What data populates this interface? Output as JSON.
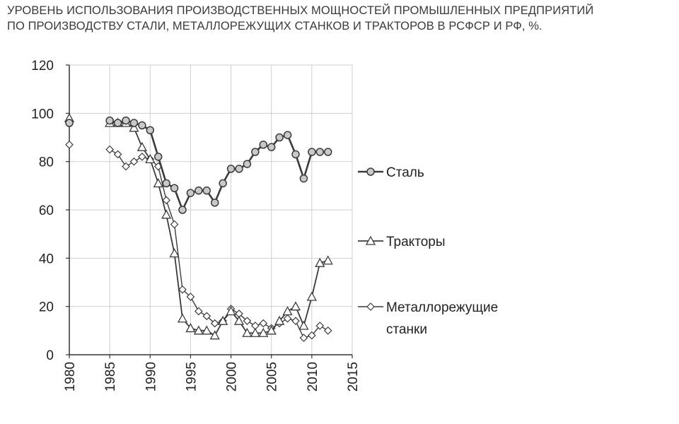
{
  "title": {
    "line1": "УРОВЕНЬ ИСПОЛЬЗОВАНИЯ ПРОИЗВОДСТВЕННЫХ МОЩНОСТЕЙ ПРОМЫШЛЕННЫХ ПРЕДПРИЯТИЙ",
    "line2": "ПО ПРОИЗВОДСТВУ СТАЛИ, МЕТАЛЛОРЕЖУЩИХ СТАНКОВ И ТРАКТОРОВ  В  РСФСР И  РФ, %."
  },
  "chart_data": {
    "type": "line",
    "title": "УРОВЕНЬ ИСПОЛЬЗОВАНИЯ ПРОИЗВОДСТВЕННЫХ МОЩНОСТЕЙ ПРОМЫШЛЕННЫХ ПРЕДПРИЯТИЙ ПО ПРОИЗВОДСТВУ СТАЛИ, МЕТАЛЛОРЕЖУЩИХ СТАНКОВ И ТРАКТОРОВ  В  РСФСР И  РФ, %.",
    "xlim": [
      1980,
      2015
    ],
    "ylim": [
      0,
      120
    ],
    "x_ticks": [
      1980,
      1985,
      1990,
      1995,
      2000,
      2005,
      2010,
      2015
    ],
    "y_ticks": [
      0,
      20,
      40,
      60,
      80,
      100,
      120
    ],
    "grid": true,
    "legend_position": "right",
    "series": [
      {
        "name": "Сталь",
        "marker": "circle",
        "line_width": 2.6,
        "points": [
          [
            1980,
            96
          ],
          [
            1985,
            97
          ],
          [
            1986,
            96
          ],
          [
            1987,
            97
          ],
          [
            1988,
            96
          ],
          [
            1989,
            95
          ],
          [
            1990,
            93
          ],
          [
            1991,
            82
          ],
          [
            1992,
            71
          ],
          [
            1993,
            69
          ],
          [
            1994,
            60
          ],
          [
            1995,
            67
          ],
          [
            1996,
            68
          ],
          [
            1997,
            68
          ],
          [
            1998,
            63
          ],
          [
            1999,
            71
          ],
          [
            2000,
            77
          ],
          [
            2001,
            77
          ],
          [
            2002,
            79
          ],
          [
            2003,
            84
          ],
          [
            2004,
            87
          ],
          [
            2005,
            86
          ],
          [
            2006,
            90
          ],
          [
            2007,
            91
          ],
          [
            2008,
            83
          ],
          [
            2009,
            73
          ],
          [
            2010,
            84
          ],
          [
            2011,
            84
          ],
          [
            2012,
            84
          ]
        ]
      },
      {
        "name": "Тракторы",
        "marker": "triangle",
        "line_width": 1.8,
        "points": [
          [
            1980,
            98
          ],
          [
            1985,
            96
          ],
          [
            1986,
            96
          ],
          [
            1987,
            96
          ],
          [
            1988,
            94
          ],
          [
            1989,
            86
          ],
          [
            1990,
            81
          ],
          [
            1991,
            71
          ],
          [
            1992,
            58
          ],
          [
            1993,
            42
          ],
          [
            1994,
            15
          ],
          [
            1995,
            11
          ],
          [
            1996,
            10
          ],
          [
            1997,
            10
          ],
          [
            1998,
            8
          ],
          [
            1999,
            14
          ],
          [
            2000,
            18
          ],
          [
            2001,
            14
          ],
          [
            2002,
            9
          ],
          [
            2003,
            9
          ],
          [
            2004,
            9
          ],
          [
            2005,
            10
          ],
          [
            2006,
            14
          ],
          [
            2007,
            18
          ],
          [
            2008,
            20
          ],
          [
            2009,
            12
          ],
          [
            2010,
            24
          ],
          [
            2011,
            38
          ],
          [
            2012,
            39
          ]
        ]
      },
      {
        "name": "Металлорежущие станки",
        "marker": "diamond",
        "line_width": 1.4,
        "points": [
          [
            1980,
            87
          ],
          [
            1985,
            85
          ],
          [
            1986,
            83
          ],
          [
            1987,
            78
          ],
          [
            1988,
            80
          ],
          [
            1989,
            82
          ],
          [
            1990,
            81
          ],
          [
            1991,
            78
          ],
          [
            1992,
            64
          ],
          [
            1993,
            54
          ],
          [
            1994,
            27
          ],
          [
            1995,
            24
          ],
          [
            1996,
            18
          ],
          [
            1997,
            16
          ],
          [
            1998,
            13
          ],
          [
            1999,
            14
          ],
          [
            2000,
            19
          ],
          [
            2001,
            17
          ],
          [
            2002,
            14
          ],
          [
            2003,
            12
          ],
          [
            2004,
            13
          ],
          [
            2005,
            11
          ],
          [
            2006,
            13
          ],
          [
            2007,
            15
          ],
          [
            2008,
            14
          ],
          [
            2009,
            7
          ],
          [
            2010,
            8
          ],
          [
            2011,
            12
          ],
          [
            2012,
            10
          ]
        ]
      }
    ]
  },
  "legend": {
    "steel": "Сталь",
    "tractors": "Тракторы",
    "machines_line1": "Металлорежущие",
    "machines_line2": "станки"
  }
}
